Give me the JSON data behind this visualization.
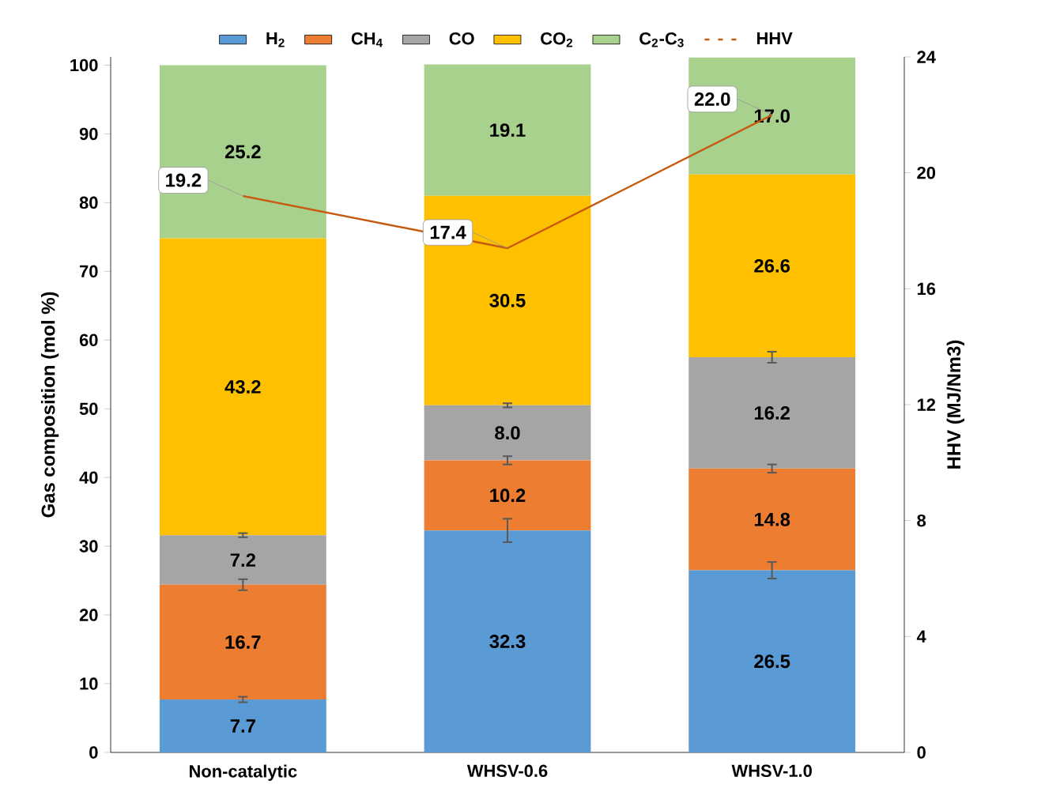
{
  "chart_data": {
    "type": "bar",
    "stacked": true,
    "categories": [
      "Non-catalytic",
      "WHSV-0.6",
      "WHSV-1.0"
    ],
    "ylabel": "Gas composition (mol %)",
    "y2label": "HHV  (MJ/Nm3)",
    "ylim": [
      0,
      101.2
    ],
    "yticks": [
      0,
      10,
      20,
      30,
      40,
      50,
      60,
      70,
      80,
      90,
      100
    ],
    "y2lim": [
      0,
      24
    ],
    "y2ticks": [
      0,
      4,
      8,
      12,
      16,
      20,
      24
    ],
    "legend": "top",
    "series": [
      {
        "name": "H$_{2}$",
        "color": "#5b9bd5",
        "values": [
          7.7,
          32.3,
          26.5
        ],
        "value_labels": [
          "7.7",
          "32.3",
          "26.5"
        ],
        "errors": [
          0.4,
          1.7,
          1.2
        ]
      },
      {
        "name": "CH$_{4}$",
        "color": "#ed7d31",
        "values": [
          16.7,
          10.2,
          14.8
        ],
        "value_labels": [
          "16.7",
          "10.2",
          "14.8"
        ],
        "errors": [
          0.8,
          0.6,
          0.6
        ]
      },
      {
        "name": "CO",
        "color": "#a5a5a5",
        "values": [
          7.2,
          8.0,
          16.2
        ],
        "value_labels": [
          "7.2",
          "8.0",
          "16.2"
        ],
        "errors": [
          0.3,
          0.3,
          0.8
        ]
      },
      {
        "name": "CO$_{2}$",
        "color": "#ffc000",
        "values": [
          43.2,
          30.5,
          26.6
        ],
        "value_labels": [
          "43.2",
          "30.5",
          "26.6"
        ]
      },
      {
        "name": "C$_{2}$-C$_{3}$",
        "color": "#a9d18e",
        "values": [
          25.2,
          19.1,
          17.0
        ],
        "value_labels": [
          "25.2",
          "19.1",
          "17.0"
        ]
      },
      {
        "name": "HHV",
        "type": "line",
        "axis": "y2",
        "color": "#c55a11",
        "values": [
          19.2,
          17.4,
          22.0
        ],
        "value_labels": [
          "19.2",
          "17.4",
          "22.0"
        ]
      }
    ]
  }
}
